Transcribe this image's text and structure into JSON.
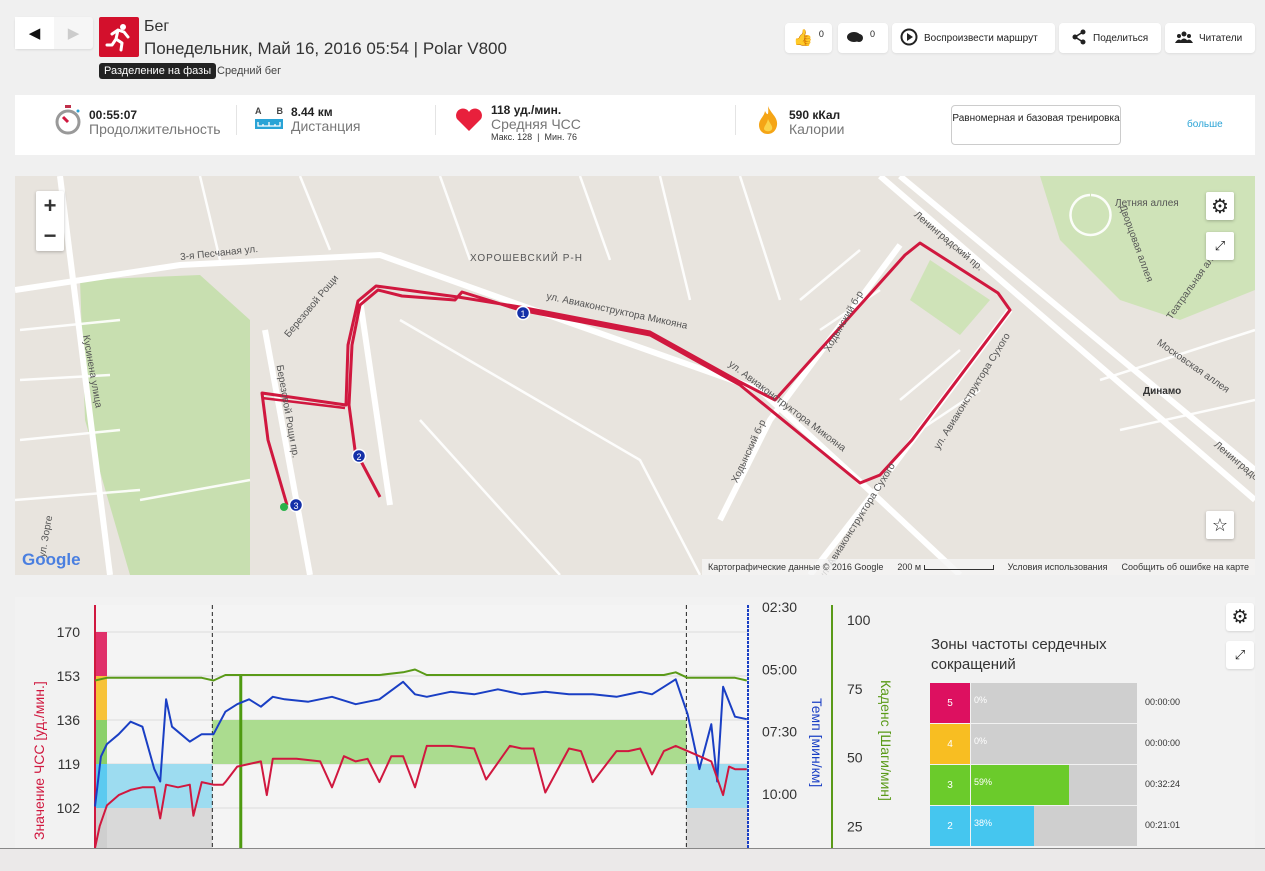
{
  "header": {
    "sport": "Бег",
    "subtitle": "Понедельник, Май 16, 2016 05:54 | Polar V800",
    "phase_tag": "Разделение на фазы",
    "phase_name": "Средний бег",
    "likes": "0",
    "comments": "0",
    "replay_label": "Воспроизвести маршрут",
    "share_label": "Поделиться",
    "followers_label": "Читатели"
  },
  "stats": {
    "duration_value": "00:55:07",
    "duration_label": "Продолжительность",
    "distance_a": "A",
    "distance_b": "B",
    "distance_value": "8.44 км",
    "distance_label": "Дистанция",
    "hr_value": "118 уд./мин.",
    "hr_label": "Средняя ЧСС",
    "hr_sub": "Макс. 128  |  Мин. 76",
    "cal_value": "590 кКал",
    "cal_label": "Калории",
    "training_type": "Равномерная и базовая тренировка",
    "more_link": "больше"
  },
  "map": {
    "labels": [
      "ХОРОШЕВСКИЙ Р-Н",
      "3-я Песчаная ул.",
      "ул. Авиаконструктора Микояна",
      "ул. Авиаконструктора Микояна",
      "Ленинградский пр.",
      "Летняя аллея",
      "Дворцовая аллея",
      "Театральная аллея",
      "Московская аллея",
      "Динамо",
      "Ходынский б-р",
      "Ходынский б-р",
      "ул. Авиаконструктора Сухого",
      "ул. Авиаконструктора Сухого",
      "Березовой Рощи",
      "Березовой Рощи пр.",
      "Кусинена улица",
      "ул. Зорге",
      "Ленинградский пр."
    ],
    "markers": [
      "1",
      "2",
      "3"
    ],
    "logo": "Google",
    "footer_data": "Картографические данные © 2016 Google",
    "footer_scale": "200 м",
    "footer_terms": "Условия использования",
    "footer_report": "Сообщить об ошибке на карте",
    "route_color": "#d0183f"
  },
  "chart_data": {
    "type": "line",
    "x_unit": "minutes",
    "xlim": [
      0,
      55.1
    ],
    "phase_markers": [
      9.9,
      49.9
    ],
    "lap_marker": 12.3,
    "axes": {
      "hr": {
        "label": "Значение ЧСС [уд./мин.]",
        "ticks": [
          "170",
          "153",
          "136",
          "119",
          "102"
        ],
        "range": [
          85,
          175
        ],
        "color": "#d0183f"
      },
      "pace": {
        "label": "Темп [мин/км]",
        "ticks": [
          "02:30",
          "05:00",
          "07:30",
          "10:00"
        ],
        "tick_values": [
          2.5,
          5,
          7.5,
          10
        ],
        "color": "#1a3fc4"
      },
      "cadence": {
        "label": "Каденс [Шаги/мин]",
        "ticks": [
          "100",
          "75",
          "50",
          "25"
        ],
        "tick_values": [
          100,
          75,
          50,
          25
        ],
        "color": "#5a9a18"
      }
    },
    "zones": [
      {
        "zone": 5,
        "from": 153,
        "to": 170,
        "color": "#e0306a"
      },
      {
        "zone": 4,
        "from": 136,
        "to": 153,
        "color": "#f7c238"
      },
      {
        "zone": 3,
        "from": 119,
        "to": 136,
        "color": "#8bd06a"
      },
      {
        "zone": 2,
        "from": 102,
        "to": 119,
        "color": "#5ccaf0"
      },
      {
        "zone": 1,
        "from": 85,
        "to": 102,
        "color": "#cfcfcf"
      }
    ],
    "series": [
      {
        "name": "hr",
        "x": [
          0,
          0.4,
          1,
          2,
          3,
          4,
          5,
          5.5,
          6,
          7,
          8,
          8.3,
          9,
          10,
          10.8,
          11,
          12,
          13,
          14,
          14.5,
          15,
          17,
          19,
          20,
          21,
          22,
          23,
          24,
          25,
          26,
          27,
          28,
          30,
          32,
          33,
          35,
          36,
          37,
          38,
          40,
          41,
          42,
          44,
          45,
          46,
          47,
          48,
          49,
          50,
          51,
          52,
          53,
          53.5,
          54,
          55
        ],
        "y": [
          78,
          95,
          103,
          107,
          109,
          110,
          110,
          98,
          111,
          110,
          111,
          99,
          112,
          111,
          111,
          112,
          118,
          119,
          120,
          107,
          121,
          121,
          120,
          110,
          122,
          120,
          121,
          112,
          122,
          122,
          110,
          126,
          126,
          125,
          113,
          126,
          125,
          125,
          108,
          125,
          124,
          112,
          124,
          124,
          125,
          115,
          124,
          126,
          124,
          122,
          120,
          107,
          118,
          117,
          117
        ]
      },
      {
        "name": "pace",
        "x": [
          0,
          0.5,
          1,
          2,
          3,
          4,
          5,
          5.5,
          6,
          6.5,
          7,
          8,
          9,
          10,
          11,
          12,
          13,
          14,
          15,
          16,
          18,
          20,
          22,
          24,
          26,
          27,
          28,
          30,
          32,
          34,
          36,
          38,
          40,
          42,
          44,
          46,
          47,
          48,
          49,
          50,
          51,
          52,
          52.5,
          53,
          54,
          55
        ],
        "y": [
          10.5,
          8.5,
          8.0,
          7.6,
          7.1,
          7.3,
          9.0,
          9.5,
          6.2,
          7.3,
          7.5,
          7.9,
          7.6,
          7.6,
          6.7,
          6.4,
          6.2,
          6.5,
          6.1,
          6.2,
          6.3,
          6.1,
          6.4,
          6.2,
          5.5,
          6.0,
          6.1,
          5.9,
          6.0,
          5.8,
          6.0,
          5.9,
          6.0,
          6.0,
          6.1,
          5.9,
          6.0,
          5.7,
          5.4,
          6.8,
          9.0,
          7.2,
          9.5,
          5.7,
          6.9,
          7.0
        ]
      },
      {
        "name": "cadence",
        "x": [
          0,
          1,
          3,
          5,
          7,
          9,
          10,
          11,
          12,
          14,
          16,
          18,
          20,
          22,
          24,
          26,
          27,
          28,
          30,
          32,
          34,
          36,
          38,
          40,
          42,
          44,
          46,
          48,
          49,
          50,
          51,
          52,
          53,
          54,
          55
        ],
        "y": [
          78,
          79,
          79,
          79,
          79,
          79,
          78,
          80,
          80,
          80,
          80,
          80,
          80,
          80,
          80,
          81,
          82,
          80,
          80,
          80,
          80,
          80,
          80,
          80,
          80,
          80,
          80,
          80,
          81,
          79,
          79,
          79,
          79,
          79,
          78
        ]
      }
    ]
  },
  "hr_zones_panel": {
    "title": "Зоны частоты сердечных сокращений",
    "rows": [
      {
        "zone": "5",
        "percent": "0%",
        "fraction": 0,
        "time": "00:00:00",
        "color": "#dd1060"
      },
      {
        "zone": "4",
        "percent": "0%",
        "fraction": 0,
        "time": "00:00:00",
        "color": "#f8be22"
      },
      {
        "zone": "3",
        "percent": "59%",
        "fraction": 0.59,
        "time": "00:32:24",
        "color": "#6bcb2b"
      },
      {
        "zone": "2",
        "percent": "38%",
        "fraction": 0.38,
        "time": "00:21:01",
        "color": "#45c6ef"
      }
    ]
  }
}
